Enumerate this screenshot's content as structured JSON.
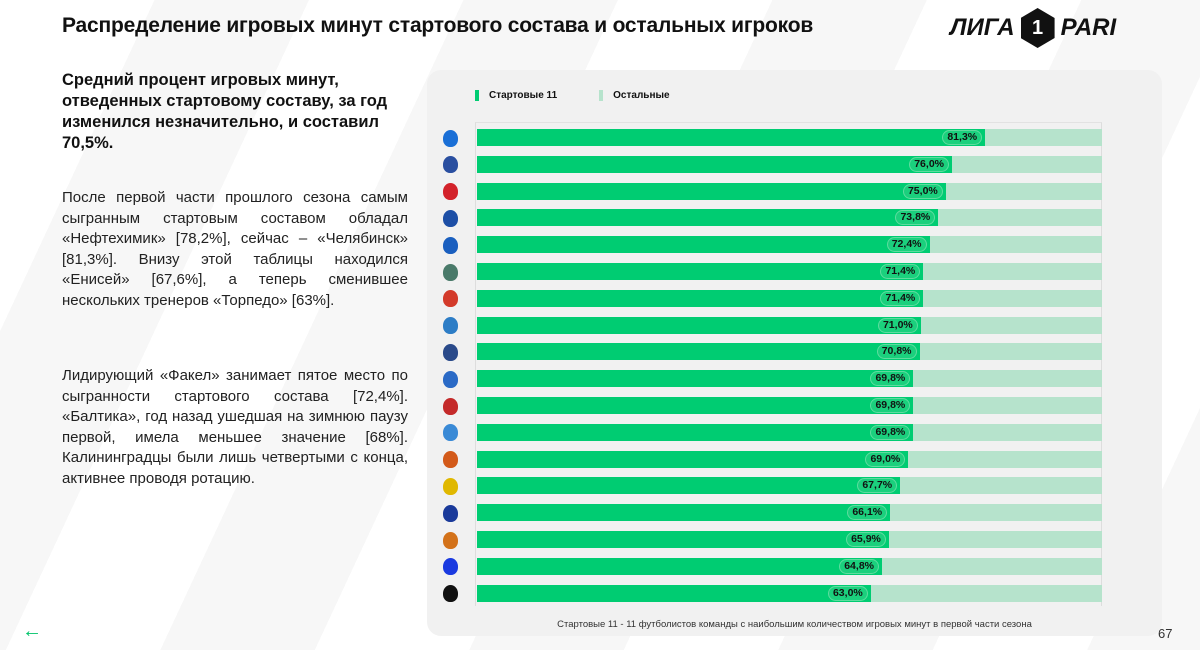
{
  "header": {
    "title": "Распределение игровых минут стартового состава и остальных игроков",
    "logo_text_left": "ЛИГА",
    "logo_num": "1",
    "logo_text_right": "PARI"
  },
  "lead": "Средний процент игровых минут, отведенных стартовому составу, за год изменился незначительно, и составил 70,5%.",
  "paragraphs": [
    "После первой части прошлого сезона самым сыгранным стартовым составом обладал «Нефтехимик» [78,2%], сейчас – «Челябинск» [81,3%]. Внизу этой таблицы находился «Енисей» [67,6%], а теперь сменившее нескольких тренеров «Торпедо» [63%].",
    "Лидирующий «Факел» занимает пятое место по сыгранности стартового состава [72,4%]. «Балтика», год назад ушедшая на зимнюю паузу первой, имела меньшее значение [68%]. Калининградцы были лишь четвертыми с конца, активнее проводя ротацию."
  ],
  "colors": {
    "starters": "#00cc72",
    "others": "#b6e3cc",
    "accent": "#00c46a"
  },
  "chart_data": {
    "type": "bar",
    "orientation": "horizontal",
    "stacked": true,
    "legend": [
      "Стартовые 11",
      "Остальные"
    ],
    "legend_position": "top-left",
    "xlim": [
      0,
      100
    ],
    "series": [
      {
        "name": "Стартовые 11",
        "values": [
          81.3,
          76.0,
          75.0,
          73.8,
          72.4,
          71.4,
          71.4,
          71.0,
          70.8,
          69.8,
          69.8,
          69.8,
          69.0,
          67.7,
          66.1,
          65.9,
          64.8,
          63.0
        ]
      }
    ],
    "labels": [
      "81,3%",
      "76,0%",
      "75,0%",
      "73,8%",
      "72,4%",
      "71,4%",
      "71,4%",
      "71,0%",
      "70,8%",
      "69,8%",
      "69,8%",
      "69,8%",
      "69,0%",
      "67,7%",
      "66,1%",
      "65,9%",
      "64,8%",
      "63,0%"
    ],
    "icon_colors": [
      "#1a6fd6",
      "#2a4fa0",
      "#d3222a",
      "#1d4fa6",
      "#1a5fbf",
      "#4a7a6a",
      "#d33a2a",
      "#2d7dc6",
      "#2a4a8a",
      "#2a6ac6",
      "#c42a2a",
      "#3a8ad6",
      "#d35a1a",
      "#e0b800",
      "#1a3a9a",
      "#d3721a",
      "#1a3ae0",
      "#111111"
    ],
    "footnote": "Стартовые 11 - 11 футболистов команды с наибольшим количеством игровых минут в первой части сезона"
  },
  "page_number": "67",
  "back_icon": "arrow-left-icon"
}
